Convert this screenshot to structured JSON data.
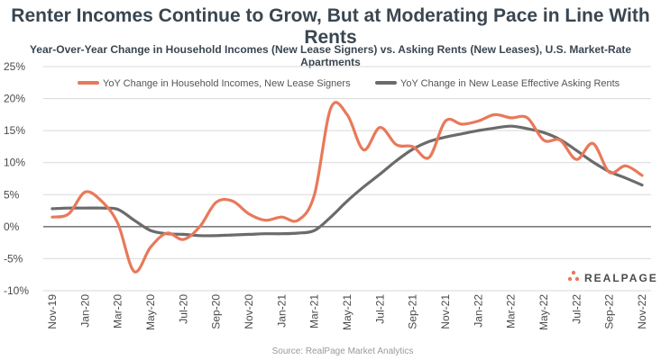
{
  "colors": {
    "income": "#e8795a",
    "rent": "#6b6b6b",
    "grid": "#d9d9d9",
    "zero": "#555555",
    "brand_accent": "#e8795a"
  },
  "brand": {
    "name": "REALPAGE"
  },
  "chart_data": {
    "type": "line",
    "title": "Renter Incomes Continue to Grow, But at Moderating Pace in Line With Rents",
    "subtitle": "Year-Over-Year Change in Household Incomes (New Lease Signers) vs. Asking Rents (New Leases), U.S. Market-Rate Apartments",
    "source": "Source: RealPage Market Analytics",
    "xlabel": "",
    "ylabel": "",
    "ylim": [
      -10,
      25
    ],
    "yticks": [
      -10,
      -5,
      0,
      5,
      10,
      15,
      20,
      25
    ],
    "ytick_labels": [
      "-10%",
      "-5%",
      "0%",
      "5%",
      "10%",
      "15%",
      "20%",
      "25%"
    ],
    "x_tick_labels": [
      "Nov-19",
      "Jan-20",
      "Mar-20",
      "May-20",
      "Jul-20",
      "Sep-20",
      "Nov-20",
      "Jan-21",
      "Mar-21",
      "May-21",
      "Jul-21",
      "Sep-21",
      "Nov-21",
      "Jan-22",
      "Mar-22",
      "May-22",
      "Jul-22",
      "Sep-22",
      "Nov-22"
    ],
    "x_months": [
      "Nov-19",
      "Dec-19",
      "Jan-20",
      "Feb-20",
      "Mar-20",
      "Apr-20",
      "May-20",
      "Jun-20",
      "Jul-20",
      "Aug-20",
      "Sep-20",
      "Oct-20",
      "Nov-20",
      "Dec-20",
      "Jan-21",
      "Feb-21",
      "Mar-21",
      "Apr-21",
      "May-21",
      "Jun-21",
      "Jul-21",
      "Aug-21",
      "Sep-21",
      "Oct-21",
      "Nov-21",
      "Dec-21",
      "Jan-22",
      "Feb-22",
      "Mar-22",
      "Apr-22",
      "May-22",
      "Jun-22",
      "Jul-22",
      "Aug-22",
      "Sep-22",
      "Oct-22",
      "Nov-22"
    ],
    "grid": true,
    "legend_position": "top",
    "series": [
      {
        "name": "YoY Change in Household Incomes, New Lease Signers",
        "color": "#e8795a",
        "values": [
          1.5,
          2.0,
          5.4,
          4.0,
          0.5,
          -7.0,
          -3.2,
          -1.0,
          -2.0,
          0.0,
          3.8,
          4.0,
          2.0,
          1.0,
          1.5,
          1.0,
          5.0,
          18.5,
          17.5,
          12.0,
          15.5,
          12.8,
          12.5,
          10.8,
          16.5,
          16.0,
          16.5,
          17.5,
          17.0,
          17.0,
          13.5,
          13.5,
          10.5,
          13.0,
          8.5,
          9.5,
          8.0
        ]
      },
      {
        "name": "YoY Change in New Lease Effective Asking Rents",
        "color": "#6b6b6b",
        "values": [
          2.8,
          2.9,
          2.9,
          2.9,
          2.7,
          1.0,
          -0.6,
          -1.1,
          -1.2,
          -1.4,
          -1.4,
          -1.3,
          -1.2,
          -1.1,
          -1.1,
          -1.0,
          -0.6,
          1.5,
          4.0,
          6.2,
          8.2,
          10.3,
          12.1,
          13.3,
          14.0,
          14.5,
          15.0,
          15.4,
          15.7,
          15.3,
          14.7,
          13.6,
          11.9,
          10.1,
          8.6,
          7.6,
          6.5
        ]
      }
    ]
  }
}
